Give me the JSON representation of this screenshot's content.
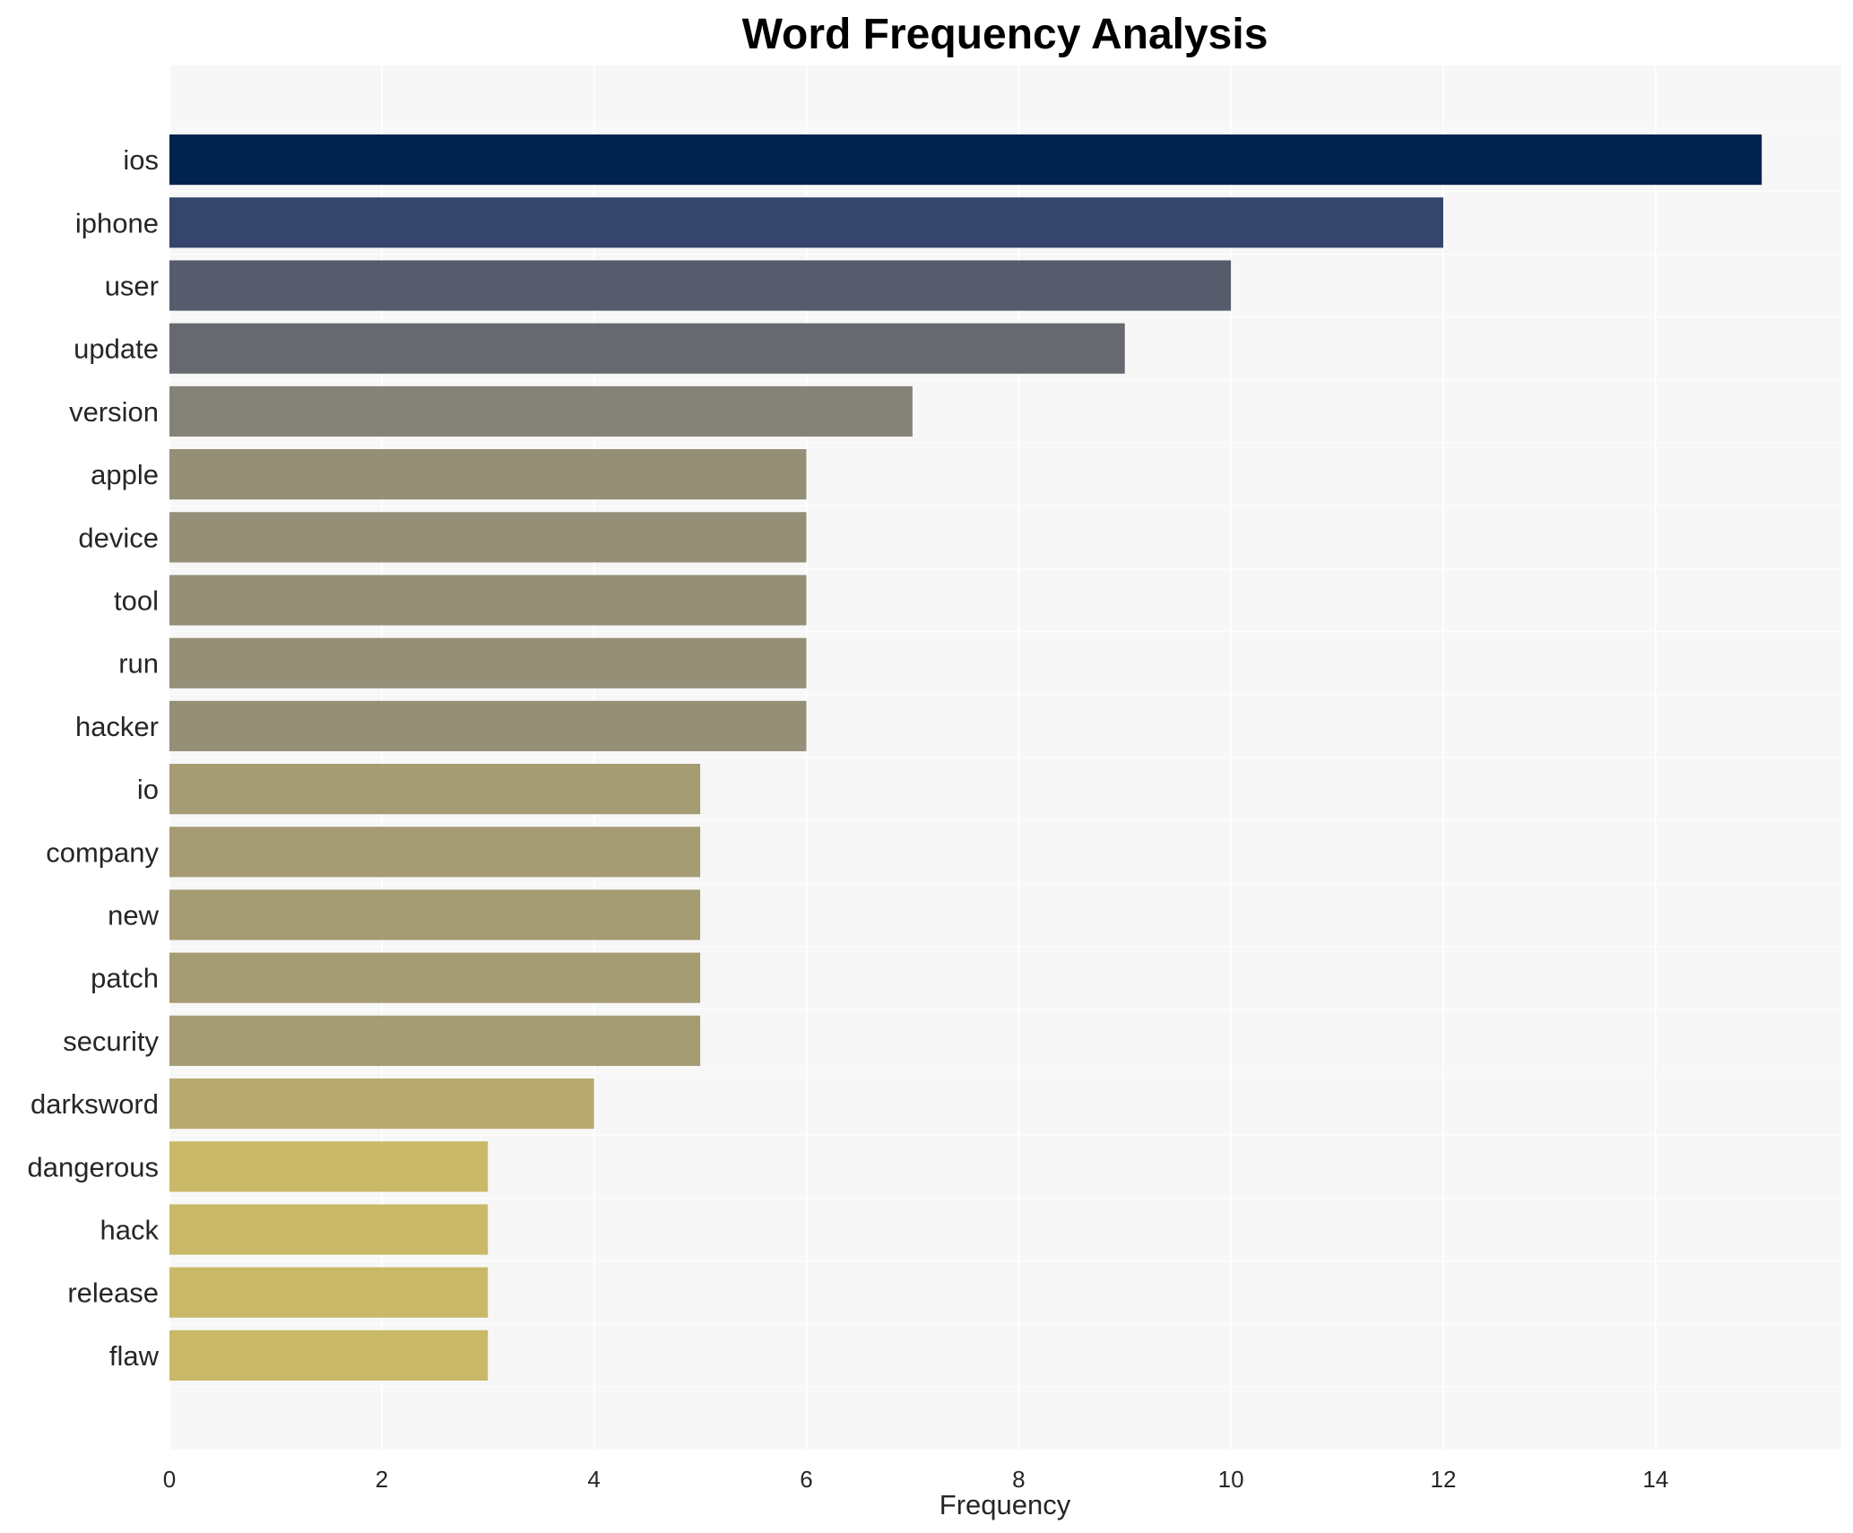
{
  "chart_data": {
    "type": "bar",
    "orientation": "horizontal",
    "title": "Word Frequency Analysis",
    "xlabel": "Frequency",
    "ylabel": "",
    "categories": [
      "ios",
      "iphone",
      "user",
      "update",
      "version",
      "apple",
      "device",
      "tool",
      "run",
      "hacker",
      "io",
      "company",
      "new",
      "patch",
      "security",
      "darksword",
      "dangerous",
      "hack",
      "release",
      "flaw"
    ],
    "values": [
      15,
      12,
      10,
      9,
      7,
      6,
      6,
      6,
      6,
      6,
      5,
      5,
      5,
      5,
      5,
      4,
      3,
      3,
      3,
      3
    ],
    "colors": [
      "#00224e",
      "#35456c",
      "#575c6d",
      "#666970",
      "#858278",
      "#958f78",
      "#958f78",
      "#958f78",
      "#958f78",
      "#958f78",
      "#a59c74",
      "#a59c74",
      "#a59c74",
      "#a59c74",
      "#a59c74",
      "#b8a96f",
      "#c9b867",
      "#c9b867",
      "#c9b867",
      "#c9b867"
    ],
    "xlim": [
      0,
      15.75
    ],
    "xticks": [
      0,
      2,
      4,
      6,
      8,
      10,
      12,
      14
    ],
    "grid": true,
    "legend": "none",
    "background": "#f7f7f7",
    "gridColor": "#ffffff"
  }
}
